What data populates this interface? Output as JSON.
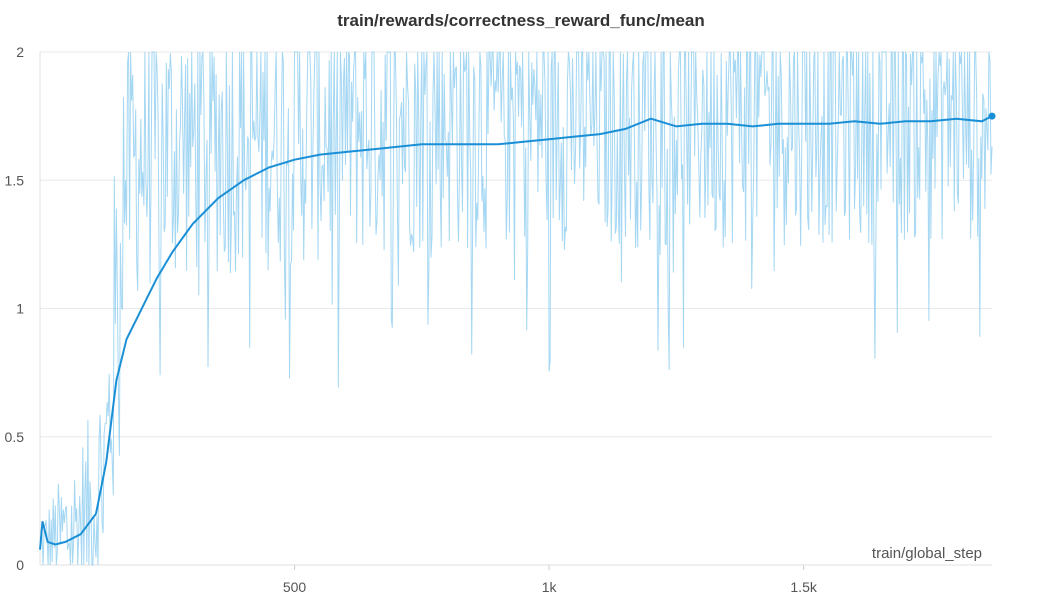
{
  "chart_data": {
    "type": "line",
    "title": "train/rewards/correctness_reward_func/mean",
    "xlabel": "train/global_step",
    "ylabel": "",
    "xlim": [
      0,
      1870
    ],
    "ylim": [
      0,
      2
    ],
    "x_ticks": [
      500,
      1000,
      1500
    ],
    "x_tick_labels": [
      "500",
      "1k",
      "1.5k"
    ],
    "y_ticks": [
      0,
      0.5,
      1,
      1.5,
      2
    ],
    "y_tick_labels": [
      "0",
      "0.5",
      "1",
      "1.5",
      "2"
    ],
    "grid": true,
    "colors": {
      "raw": "#8ecdf0",
      "smoothed": "#1a8fd6"
    },
    "series": [
      {
        "role": "raw",
        "noise_step": 2,
        "envelope": [
          [
            0,
            0.06
          ],
          [
            30,
            0.08
          ],
          [
            60,
            0.1
          ],
          [
            100,
            0.15
          ],
          [
            130,
            0.35
          ],
          [
            150,
            0.9
          ],
          [
            160,
            1.45
          ],
          [
            200,
            1.55
          ],
          [
            300,
            1.6
          ],
          [
            500,
            1.65
          ],
          [
            700,
            1.7
          ],
          [
            1000,
            1.72
          ],
          [
            1300,
            1.73
          ],
          [
            1600,
            1.74
          ],
          [
            1870,
            1.75
          ]
        ]
      },
      {
        "role": "smoothed",
        "x": [
          0,
          5,
          15,
          30,
          50,
          80,
          110,
          130,
          150,
          170,
          190,
          210,
          230,
          260,
          300,
          350,
          400,
          450,
          500,
          550,
          600,
          650,
          700,
          750,
          800,
          850,
          900,
          950,
          1000,
          1050,
          1100,
          1150,
          1200,
          1250,
          1300,
          1350,
          1400,
          1450,
          1500,
          1550,
          1600,
          1650,
          1700,
          1750,
          1800,
          1850,
          1870
        ],
        "y": [
          0.06,
          0.17,
          0.09,
          0.08,
          0.09,
          0.12,
          0.2,
          0.4,
          0.72,
          0.88,
          0.96,
          1.04,
          1.12,
          1.22,
          1.33,
          1.43,
          1.5,
          1.55,
          1.58,
          1.6,
          1.61,
          1.62,
          1.63,
          1.64,
          1.64,
          1.64,
          1.64,
          1.65,
          1.66,
          1.67,
          1.68,
          1.7,
          1.74,
          1.71,
          1.72,
          1.72,
          1.71,
          1.72,
          1.72,
          1.72,
          1.73,
          1.72,
          1.73,
          1.73,
          1.74,
          1.73,
          1.75
        ]
      }
    ]
  }
}
